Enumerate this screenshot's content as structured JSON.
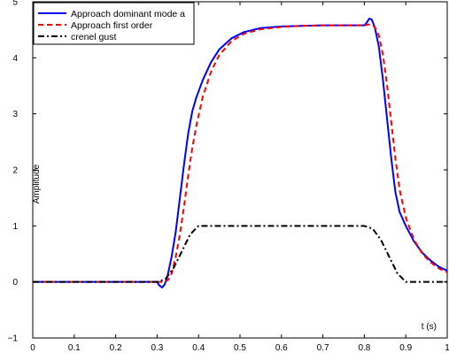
{
  "chart_data": {
    "type": "line",
    "title": "",
    "xlabel": "t (s)",
    "ylabel": "Amplitude",
    "xlim": [
      0,
      1
    ],
    "ylim": [
      -1,
      5
    ],
    "grid": false,
    "legend_position": "top-left",
    "x_ticks": [
      "0",
      "0.1",
      "0.2",
      "0.3",
      "0.4",
      "0.5",
      "0.6",
      "0.7",
      "0.8",
      "0.9",
      "1"
    ],
    "y_ticks": [
      "−1",
      "0",
      "1",
      "2",
      "3",
      "4",
      "5"
    ],
    "series": [
      {
        "name": "Approach dominant mode a",
        "color": "#0000ff",
        "style": "solid",
        "points": [
          [
            0,
            0
          ],
          [
            0.3,
            0
          ],
          [
            0.305,
            -0.06
          ],
          [
            0.312,
            -0.1
          ],
          [
            0.318,
            -0.05
          ],
          [
            0.325,
            0.1
          ],
          [
            0.335,
            0.45
          ],
          [
            0.345,
            0.9
          ],
          [
            0.355,
            1.5
          ],
          [
            0.365,
            2.1
          ],
          [
            0.375,
            2.65
          ],
          [
            0.385,
            3.05
          ],
          [
            0.395,
            3.3
          ],
          [
            0.41,
            3.6
          ],
          [
            0.43,
            3.92
          ],
          [
            0.45,
            4.15
          ],
          [
            0.48,
            4.35
          ],
          [
            0.51,
            4.46
          ],
          [
            0.55,
            4.53
          ],
          [
            0.6,
            4.56
          ],
          [
            0.65,
            4.57
          ],
          [
            0.7,
            4.58
          ],
          [
            0.75,
            4.58
          ],
          [
            0.8,
            4.58
          ],
          [
            0.805,
            4.62
          ],
          [
            0.812,
            4.7
          ],
          [
            0.818,
            4.68
          ],
          [
            0.825,
            4.55
          ],
          [
            0.835,
            4.2
          ],
          [
            0.845,
            3.6
          ],
          [
            0.855,
            2.9
          ],
          [
            0.865,
            2.2
          ],
          [
            0.875,
            1.6
          ],
          [
            0.885,
            1.25
          ],
          [
            0.9,
            1.0
          ],
          [
            0.92,
            0.72
          ],
          [
            0.94,
            0.52
          ],
          [
            0.96,
            0.38
          ],
          [
            0.98,
            0.27
          ],
          [
            1.0,
            0.2
          ]
        ]
      },
      {
        "name": "Approach first order",
        "color": "#ff0000",
        "style": "dashed",
        "points": [
          [
            0,
            0
          ],
          [
            0.32,
            0
          ],
          [
            0.328,
            0.05
          ],
          [
            0.335,
            0.15
          ],
          [
            0.345,
            0.45
          ],
          [
            0.355,
            0.85
          ],
          [
            0.365,
            1.35
          ],
          [
            0.375,
            1.9
          ],
          [
            0.385,
            2.4
          ],
          [
            0.395,
            2.8
          ],
          [
            0.41,
            3.3
          ],
          [
            0.43,
            3.75
          ],
          [
            0.45,
            4.05
          ],
          [
            0.48,
            4.3
          ],
          [
            0.51,
            4.43
          ],
          [
            0.55,
            4.51
          ],
          [
            0.6,
            4.55
          ],
          [
            0.65,
            4.57
          ],
          [
            0.7,
            4.58
          ],
          [
            0.75,
            4.58
          ],
          [
            0.8,
            4.58
          ],
          [
            0.815,
            4.6
          ],
          [
            0.825,
            4.55
          ],
          [
            0.835,
            4.4
          ],
          [
            0.845,
            4.05
          ],
          [
            0.855,
            3.5
          ],
          [
            0.865,
            2.85
          ],
          [
            0.875,
            2.2
          ],
          [
            0.885,
            1.65
          ],
          [
            0.9,
            1.15
          ],
          [
            0.92,
            0.75
          ],
          [
            0.94,
            0.5
          ],
          [
            0.96,
            0.35
          ],
          [
            0.98,
            0.24
          ],
          [
            1.0,
            0.17
          ]
        ]
      },
      {
        "name": "crenel gust",
        "color": "#000000",
        "style": "dashdot",
        "points": [
          [
            0,
            0
          ],
          [
            0.3,
            0
          ],
          [
            0.32,
            0.05
          ],
          [
            0.34,
            0.25
          ],
          [
            0.36,
            0.55
          ],
          [
            0.38,
            0.85
          ],
          [
            0.4,
            1.0
          ],
          [
            0.8,
            1.0
          ],
          [
            0.82,
            0.95
          ],
          [
            0.84,
            0.75
          ],
          [
            0.86,
            0.45
          ],
          [
            0.88,
            0.15
          ],
          [
            0.9,
            0.0
          ],
          [
            1.0,
            0.0
          ]
        ]
      }
    ]
  }
}
